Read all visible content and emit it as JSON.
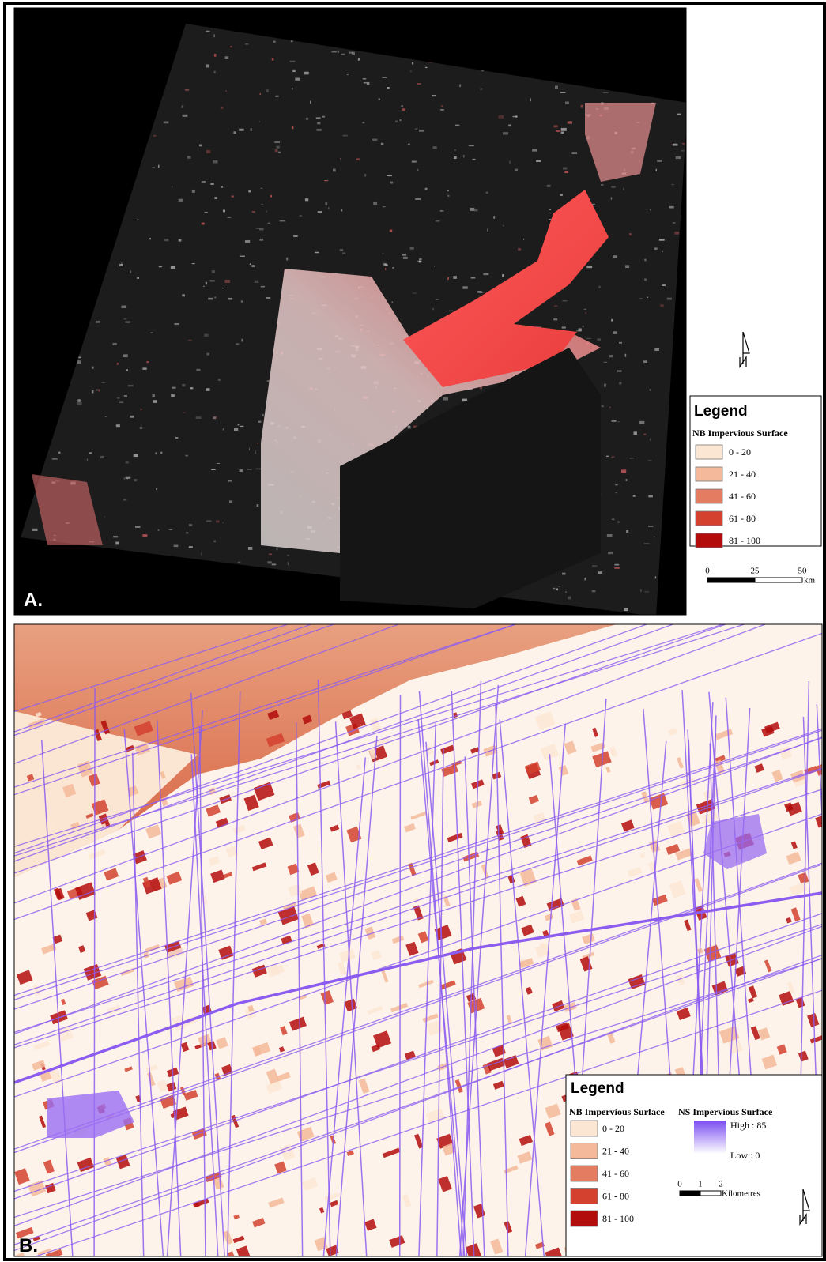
{
  "panel_a": {
    "label": "A.",
    "legend": {
      "title": "Legend",
      "layer": "NB Impervious Surface",
      "classes": [
        {
          "label": "0 - 20",
          "color": "#fbe6d3"
        },
        {
          "label": "21 - 40",
          "color": "#f4b89a"
        },
        {
          "label": "41 - 60",
          "color": "#e47c62"
        },
        {
          "label": "61 - 80",
          "color": "#d4412f"
        },
        {
          "label": "81 - 100",
          "color": "#b30c0c"
        }
      ]
    },
    "scale_bar": {
      "labels": [
        "0",
        "25",
        "50"
      ],
      "unit": "km"
    }
  },
  "panel_b": {
    "label": "B.",
    "legend": {
      "title": "Legend",
      "nb_layer": {
        "title": "NB Impervious Surface",
        "classes": [
          {
            "label": "0 - 20",
            "color": "#fbe6d3"
          },
          {
            "label": "21 - 40",
            "color": "#f4b89a"
          },
          {
            "label": "41 - 60",
            "color": "#e47c62"
          },
          {
            "label": "61 - 80",
            "color": "#d4412f"
          },
          {
            "label": "81 - 100",
            "color": "#b30c0c"
          }
        ]
      },
      "ns_layer": {
        "title": "NS Impervious Surface",
        "high": "High : 85",
        "low": "Low : 0",
        "high_color": "#7b4cf2",
        "low_color": "#ffffff"
      }
    },
    "scale_bar": {
      "labels": [
        "0",
        "1",
        "2"
      ],
      "unit": "Kilometres"
    }
  }
}
